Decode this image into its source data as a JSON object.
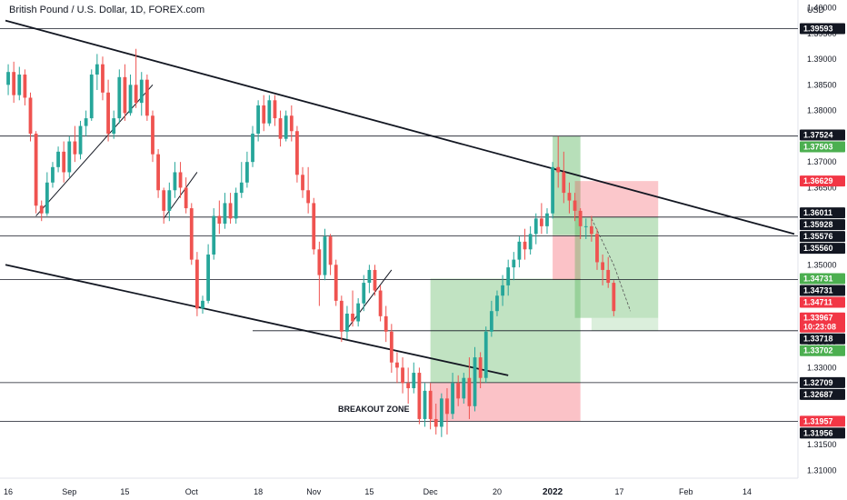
{
  "chart_data": {
    "type": "candlestick",
    "title": "British Pound / U.S. Dollar, 1D, FOREX.com",
    "currency_label": "USD",
    "ylim": [
      1.3085,
      1.4015
    ],
    "y_ticks": [
      "1.40000",
      "1.39500",
      "1.39000",
      "1.38500",
      "1.38000",
      "1.37500",
      "1.37000",
      "1.36500",
      "1.36000",
      "1.35500",
      "1.35000",
      "1.34500",
      "1.34000",
      "1.33500",
      "1.33000",
      "1.32500",
      "1.32000",
      "1.31500",
      "1.31000"
    ],
    "x_ticks": [
      {
        "label": "16",
        "i": 0
      },
      {
        "label": "Sep",
        "i": 11
      },
      {
        "label": "15",
        "i": 21
      },
      {
        "label": "Oct",
        "i": 33
      },
      {
        "label": "18",
        "i": 45
      },
      {
        "label": "Nov",
        "i": 55
      },
      {
        "label": "15",
        "i": 65
      },
      {
        "label": "Dec",
        "i": 76
      },
      {
        "label": "20",
        "i": 88
      },
      {
        "label": "2022",
        "i": 98,
        "bold": true
      },
      {
        "label": "17",
        "i": 110
      },
      {
        "label": "Feb",
        "i": 122
      },
      {
        "label": "14",
        "i": 133
      }
    ],
    "x_slots": 142,
    "candles": [
      [
        1.385,
        1.389,
        1.383,
        1.3875
      ],
      [
        1.3875,
        1.3895,
        1.3815,
        1.383
      ],
      [
        1.383,
        1.3885,
        1.382,
        1.387
      ],
      [
        1.387,
        1.388,
        1.381,
        1.3825
      ],
      [
        1.3825,
        1.3835,
        1.374,
        1.3755
      ],
      [
        1.3755,
        1.376,
        1.36,
        1.3615
      ],
      [
        1.3615,
        1.3625,
        1.3585,
        1.36
      ],
      [
        1.36,
        1.368,
        1.3595,
        1.366
      ],
      [
        1.366,
        1.37,
        1.365,
        1.369
      ],
      [
        1.369,
        1.373,
        1.368,
        1.372
      ],
      [
        1.372,
        1.374,
        1.366,
        1.368
      ],
      [
        1.368,
        1.375,
        1.367,
        1.374
      ],
      [
        1.374,
        1.377,
        1.37,
        1.3715
      ],
      [
        1.3715,
        1.378,
        1.3705,
        1.377
      ],
      [
        1.377,
        1.38,
        1.375,
        1.3785
      ],
      [
        1.3785,
        1.388,
        1.378,
        1.387
      ],
      [
        1.387,
        1.391,
        1.384,
        1.389
      ],
      [
        1.389,
        1.3905,
        1.382,
        1.3835
      ],
      [
        1.3835,
        1.386,
        1.374,
        1.3755
      ],
      [
        1.3755,
        1.38,
        1.3745,
        1.3785
      ],
      [
        1.3785,
        1.388,
        1.3775,
        1.3865
      ],
      [
        1.3865,
        1.389,
        1.378,
        1.3795
      ],
      [
        1.3795,
        1.387,
        1.379,
        1.385
      ],
      [
        1.385,
        1.392,
        1.3805,
        1.3815
      ],
      [
        1.3815,
        1.3875,
        1.379,
        1.386
      ],
      [
        1.386,
        1.387,
        1.378,
        1.379
      ],
      [
        1.379,
        1.38,
        1.37,
        1.3715
      ],
      [
        1.3715,
        1.3725,
        1.363,
        1.3645
      ],
      [
        1.3645,
        1.365,
        1.358,
        1.3605
      ],
      [
        1.3605,
        1.366,
        1.3585,
        1.3645
      ],
      [
        1.3645,
        1.37,
        1.363,
        1.368
      ],
      [
        1.368,
        1.37,
        1.363,
        1.365
      ],
      [
        1.365,
        1.367,
        1.36,
        1.361
      ],
      [
        1.361,
        1.362,
        1.35,
        1.351
      ],
      [
        1.351,
        1.3525,
        1.34,
        1.3415
      ],
      [
        1.3415,
        1.344,
        1.3405,
        1.343
      ],
      [
        1.343,
        1.354,
        1.3425,
        1.352
      ],
      [
        1.352,
        1.361,
        1.351,
        1.3595
      ],
      [
        1.3595,
        1.3625,
        1.356,
        1.358
      ],
      [
        1.358,
        1.364,
        1.357,
        1.362
      ],
      [
        1.362,
        1.364,
        1.358,
        1.359
      ],
      [
        1.359,
        1.365,
        1.358,
        1.364
      ],
      [
        1.364,
        1.37,
        1.363,
        1.366
      ],
      [
        1.366,
        1.372,
        1.365,
        1.37
      ],
      [
        1.37,
        1.377,
        1.369,
        1.3755
      ],
      [
        1.3755,
        1.382,
        1.374,
        1.381
      ],
      [
        1.381,
        1.383,
        1.376,
        1.3775
      ],
      [
        1.3775,
        1.383,
        1.377,
        1.382
      ],
      [
        1.382,
        1.383,
        1.377,
        1.3785
      ],
      [
        1.3785,
        1.38,
        1.373,
        1.3745
      ],
      [
        1.3745,
        1.38,
        1.374,
        1.379
      ],
      [
        1.379,
        1.381,
        1.374,
        1.376
      ],
      [
        1.376,
        1.377,
        1.366,
        1.3675
      ],
      [
        1.3675,
        1.369,
        1.363,
        1.3645
      ],
      [
        1.3645,
        1.369,
        1.36,
        1.362
      ],
      [
        1.362,
        1.363,
        1.352,
        1.353
      ],
      [
        1.353,
        1.3545,
        1.342,
        1.348
      ],
      [
        1.348,
        1.357,
        1.347,
        1.3555
      ],
      [
        1.3555,
        1.356,
        1.348,
        1.35
      ],
      [
        1.35,
        1.351,
        1.342,
        1.343
      ],
      [
        1.343,
        1.344,
        1.335,
        1.337
      ],
      [
        1.337,
        1.342,
        1.3355,
        1.3405
      ],
      [
        1.3405,
        1.345,
        1.338,
        1.339
      ],
      [
        1.339,
        1.3435,
        1.338,
        1.3425
      ],
      [
        1.3425,
        1.348,
        1.341,
        1.3465
      ],
      [
        1.3465,
        1.35,
        1.3445,
        1.349
      ],
      [
        1.349,
        1.35,
        1.344,
        1.345
      ],
      [
        1.345,
        1.346,
        1.339,
        1.34
      ],
      [
        1.34,
        1.342,
        1.335,
        1.337
      ],
      [
        1.337,
        1.3385,
        1.329,
        1.331
      ],
      [
        1.331,
        1.333,
        1.327,
        1.33
      ],
      [
        1.33,
        1.332,
        1.325,
        1.327
      ],
      [
        1.327,
        1.33,
        1.323,
        1.326
      ],
      [
        1.326,
        1.331,
        1.325,
        1.329
      ],
      [
        1.329,
        1.33,
        1.319,
        1.32
      ],
      [
        1.32,
        1.327,
        1.3185,
        1.3255
      ],
      [
        1.3255,
        1.327,
        1.318,
        1.32
      ],
      [
        1.32,
        1.323,
        1.317,
        1.3185
      ],
      [
        1.3185,
        1.325,
        1.3165,
        1.324
      ],
      [
        1.324,
        1.326,
        1.317,
        1.321
      ],
      [
        1.321,
        1.329,
        1.32,
        1.327
      ],
      [
        1.327,
        1.3285,
        1.3225,
        1.324
      ],
      [
        1.324,
        1.329,
        1.323,
        1.328
      ],
      [
        1.328,
        1.332,
        1.32,
        1.3225
      ],
      [
        1.3225,
        1.334,
        1.3215,
        1.332
      ],
      [
        1.332,
        1.333,
        1.326,
        1.328
      ],
      [
        1.328,
        1.338,
        1.327,
        1.337
      ],
      [
        1.337,
        1.343,
        1.336,
        1.341
      ],
      [
        1.341,
        1.345,
        1.34,
        1.344
      ],
      [
        1.344,
        1.348,
        1.342,
        1.346
      ],
      [
        1.346,
        1.351,
        1.344,
        1.3495
      ],
      [
        1.3495,
        1.3525,
        1.347,
        1.351
      ],
      [
        1.351,
        1.3555,
        1.3495,
        1.3545
      ],
      [
        1.3545,
        1.357,
        1.351,
        1.353
      ],
      [
        1.353,
        1.3575,
        1.352,
        1.356
      ],
      [
        1.356,
        1.36,
        1.354,
        1.359
      ],
      [
        1.359,
        1.362,
        1.356,
        1.3575
      ],
      [
        1.3575,
        1.361,
        1.356,
        1.36
      ],
      [
        1.36,
        1.37,
        1.359,
        1.369
      ],
      [
        1.369,
        1.375,
        1.365,
        1.368
      ],
      [
        1.368,
        1.372,
        1.362,
        1.364
      ],
      [
        1.364,
        1.366,
        1.36,
        1.3625
      ],
      [
        1.3625,
        1.364,
        1.3585,
        1.3605
      ],
      [
        1.3605,
        1.361,
        1.355,
        1.3575
      ],
      [
        1.3575,
        1.359,
        1.355,
        1.3575
      ],
      [
        1.3575,
        1.3595,
        1.3545,
        1.356
      ],
      [
        1.356,
        1.357,
        1.349,
        1.3505
      ],
      [
        1.3505,
        1.352,
        1.346,
        1.349
      ],
      [
        1.349,
        1.3515,
        1.3455,
        1.3465
      ],
      [
        1.3465,
        1.347,
        1.34,
        1.341
      ]
    ],
    "horizontal_levels": [
      1.39593,
      1.37503,
      1.35928,
      1.3556,
      1.34711,
      1.33718,
      1.32709,
      1.31957
    ],
    "price_tags": [
      {
        "label": "1.39593",
        "v": 1.39593,
        "color": "#131722"
      },
      {
        "label": "1.37524",
        "v": 1.37524,
        "color": "#131722"
      },
      {
        "label": "1.37503",
        "v": 1.37503,
        "color": "#4caf50"
      },
      {
        "label": "1.36629",
        "v": 1.36629,
        "color": "#f23645"
      },
      {
        "label": "1.36011",
        "v": 1.36011,
        "color": "#131722"
      },
      {
        "label": "1.35928",
        "v": 1.35928,
        "color": "#131722"
      },
      {
        "label": "1.35576",
        "v": 1.35576,
        "color": "#131722"
      },
      {
        "label": "1.35560",
        "v": 1.3556,
        "color": "#131722"
      },
      {
        "label": "1.34731",
        "v": 1.34731,
        "color": "#4caf50"
      },
      {
        "label": "1.34731",
        "v": 1.34731,
        "color": "#131722"
      },
      {
        "label": "1.34711",
        "v": 1.34711,
        "color": "#f23645"
      },
      {
        "label": "1.33967",
        "sub": "10:23:08",
        "v": 1.33967,
        "color": "#f23645"
      },
      {
        "label": "1.33718",
        "v": 1.33718,
        "color": "#131722"
      },
      {
        "label": "1.33702",
        "v": 1.33702,
        "color": "#4caf50"
      },
      {
        "label": "1.32709",
        "v": 1.32709,
        "color": "#131722"
      },
      {
        "label": "1.32687",
        "v": 1.32687,
        "color": "#131722"
      },
      {
        "label": "1.31957",
        "v": 1.31957,
        "color": "#f23645"
      },
      {
        "label": "1.31956",
        "v": 1.31956,
        "color": "#131722"
      }
    ],
    "annotation": "BREAKOUT ZONE",
    "colors": {
      "up": "#26a69a",
      "down": "#ef5350",
      "profit": "#4caf50",
      "loss": "#f23645",
      "line": "#131722"
    }
  }
}
